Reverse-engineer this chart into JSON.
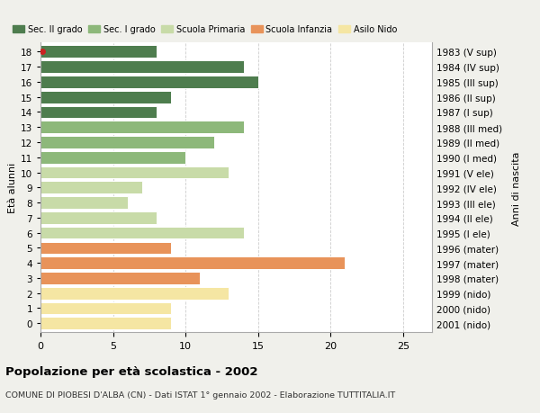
{
  "ages": [
    0,
    1,
    2,
    3,
    4,
    5,
    6,
    7,
    8,
    9,
    10,
    11,
    12,
    13,
    14,
    15,
    16,
    17,
    18
  ],
  "values": [
    9,
    9,
    13,
    11,
    21,
    9,
    14,
    8,
    6,
    7,
    13,
    10,
    12,
    14,
    8,
    9,
    15,
    14,
    8
  ],
  "right_labels": [
    "2001 (nido)",
    "2000 (nido)",
    "1999 (nido)",
    "1998 (mater)",
    "1997 (mater)",
    "1996 (mater)",
    "1995 (I ele)",
    "1994 (II ele)",
    "1993 (III ele)",
    "1992 (IV ele)",
    "1991 (V ele)",
    "1990 (I med)",
    "1989 (II med)",
    "1988 (III med)",
    "1987 (I sup)",
    "1986 (II sup)",
    "1985 (III sup)",
    "1984 (IV sup)",
    "1983 (V sup)"
  ],
  "colors": [
    "#f5e6a3",
    "#f5e6a3",
    "#f5e6a3",
    "#e8935a",
    "#e8935a",
    "#e8935a",
    "#c8dba8",
    "#c8dba8",
    "#c8dba8",
    "#c8dba8",
    "#c8dba8",
    "#8db87a",
    "#8db87a",
    "#8db87a",
    "#4e7d4e",
    "#4e7d4e",
    "#4e7d4e",
    "#4e7d4e",
    "#4e7d4e"
  ],
  "legend_labels": [
    "Sec. II grado",
    "Sec. I grado",
    "Scuola Primaria",
    "Scuola Infanzia",
    "Asilo Nido"
  ],
  "legend_colors": [
    "#4e7d4e",
    "#8db87a",
    "#c8dba8",
    "#e8935a",
    "#f5e6a3"
  ],
  "title_main": "Popolazione per età scolastica - 2002",
  "title_sub": "COMUNE DI PIOBESI D'ALBA (CN) - Dati ISTAT 1° gennaio 2002 - Elaborazione TUTTITALIA.IT",
  "ylabel_left": "Età alunni",
  "ylabel_right": "Anni di nascita",
  "xlim": [
    0,
    27
  ],
  "xticks": [
    0,
    5,
    10,
    15,
    20,
    25
  ],
  "bg_color": "#f0f0eb",
  "bar_bg_color": "#ffffff",
  "red_dot_age": 18,
  "grid_color": "#cccccc"
}
